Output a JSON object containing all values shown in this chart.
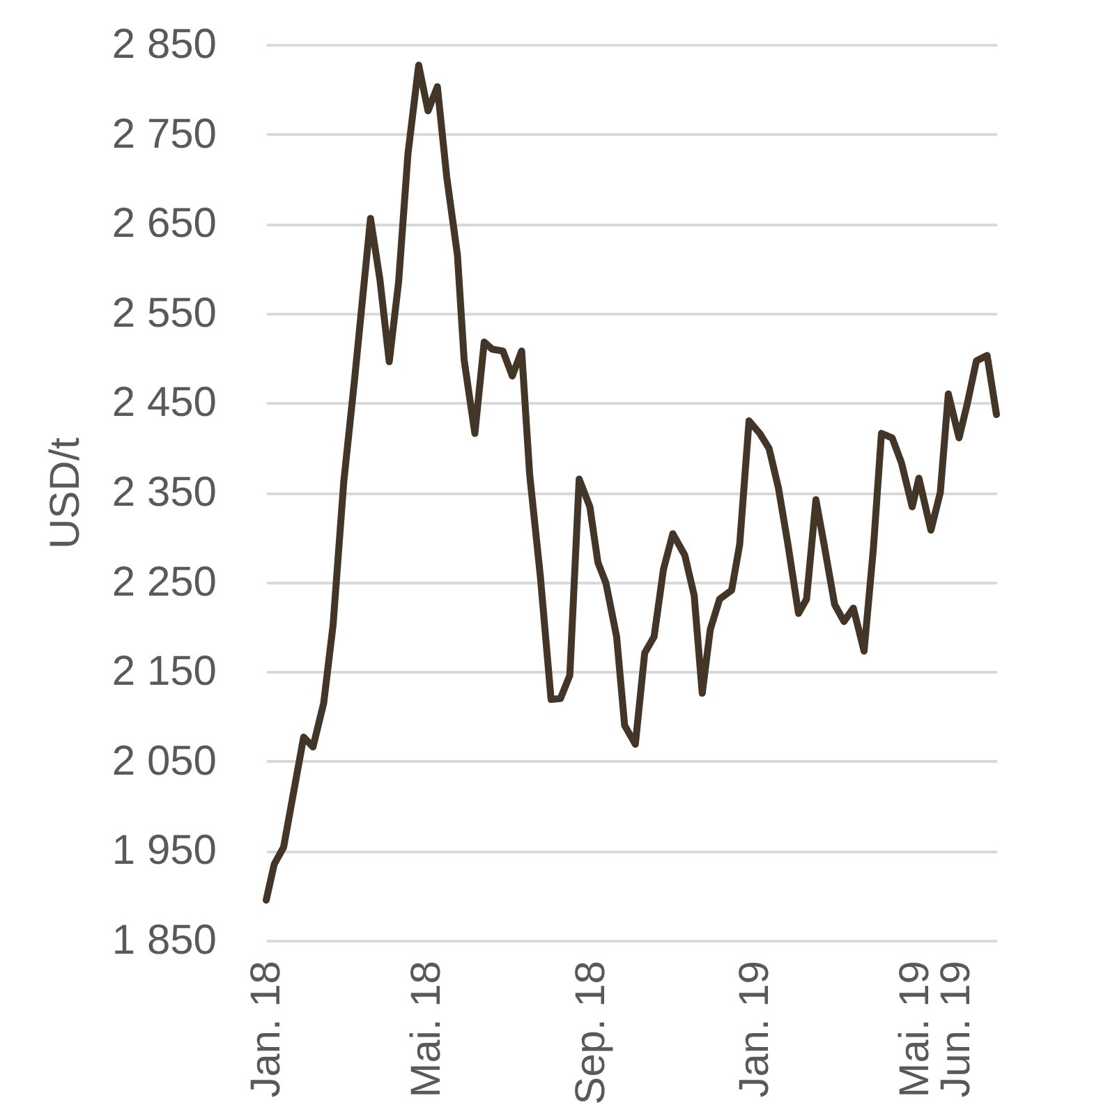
{
  "chart_data": {
    "type": "line",
    "ylabel": "USD/t",
    "xlim": [
      "2018-01-01",
      "2019-07-01"
    ],
    "xticks": [
      {
        "value": "2018-01-01",
        "label": "Jan. 18"
      },
      {
        "value": "2018-05-01",
        "label": "Mai. 18"
      },
      {
        "value": "2018-09-01",
        "label": "Sep. 18"
      },
      {
        "value": "2019-01-01",
        "label": "Jan. 19"
      },
      {
        "value": "2019-05-01",
        "label": "Mai. 19"
      },
      {
        "value": "2019-06-01",
        "label": "Jun. 19"
      }
    ],
    "ylim": [
      1850,
      2850
    ],
    "yticks": [
      {
        "value": 1850,
        "label": "1 850"
      },
      {
        "value": 1950,
        "label": "1 950"
      },
      {
        "value": 2050,
        "label": "2 050"
      },
      {
        "value": 2150,
        "label": "2 150"
      },
      {
        "value": 2250,
        "label": "2 250"
      },
      {
        "value": 2350,
        "label": "2 350"
      },
      {
        "value": 2450,
        "label": "2 450"
      },
      {
        "value": 2550,
        "label": "2 550"
      },
      {
        "value": 2650,
        "label": "2 650"
      },
      {
        "value": 2750,
        "label": "2 750"
      },
      {
        "value": 2850,
        "label": "2 850"
      }
    ],
    "grid": "y",
    "x": [
      "2018-01-01",
      "2018-01-07",
      "2018-01-14",
      "2018-01-29",
      "2018-02-05",
      "2018-02-13",
      "2018-02-20",
      "2018-02-28",
      "2018-03-08",
      "2018-03-20",
      "2018-03-27",
      "2018-04-03",
      "2018-04-10",
      "2018-04-17",
      "2018-04-25",
      "2018-05-02",
      "2018-05-09",
      "2018-05-16",
      "2018-05-24",
      "2018-05-29",
      "2018-06-06",
      "2018-06-13",
      "2018-06-19",
      "2018-06-27",
      "2018-07-04",
      "2018-07-11",
      "2018-07-17",
      "2018-07-25",
      "2018-08-02",
      "2018-08-09",
      "2018-08-16",
      "2018-08-23",
      "2018-08-31",
      "2018-09-06",
      "2018-09-12",
      "2018-09-20",
      "2018-09-26",
      "2018-10-04",
      "2018-10-11",
      "2018-10-18",
      "2018-10-25",
      "2018-11-01",
      "2018-11-10",
      "2018-11-17",
      "2018-11-23",
      "2018-11-29",
      "2018-12-06",
      "2018-12-15",
      "2018-12-21",
      "2018-12-28",
      "2019-01-05",
      "2019-01-12",
      "2019-01-19",
      "2019-01-26",
      "2019-02-03",
      "2019-02-09",
      "2019-02-16",
      "2019-02-22",
      "2019-03-02",
      "2019-03-09",
      "2019-03-16",
      "2019-03-24",
      "2019-03-31",
      "2019-04-06",
      "2019-04-14",
      "2019-04-21",
      "2019-04-29",
      "2019-05-04",
      "2019-05-13",
      "2019-05-20",
      "2019-05-26",
      "2019-06-03",
      "2019-06-09",
      "2019-06-16",
      "2019-06-24",
      "2019-07-01"
    ],
    "series": [
      {
        "color": "#433629",
        "values": [
          1895,
          1935,
          1954,
          2077,
          2066,
          2115,
          2202,
          2362,
          2475,
          2656,
          2588,
          2496,
          2585,
          2728,
          2827,
          2776,
          2803,
          2702,
          2615,
          2498,
          2416,
          2518,
          2510,
          2508,
          2480,
          2508,
          2370,
          2256,
          2119,
          2120,
          2146,
          2365,
          2334,
          2272,
          2249,
          2189,
          2090,
          2069,
          2171,
          2189,
          2264,
          2304,
          2280,
          2235,
          2126,
          2197,
          2231,
          2241,
          2292,
          2430,
          2416,
          2399,
          2355,
          2293,
          2215,
          2231,
          2342,
          2293,
          2225,
          2206,
          2221,
          2173,
          2288,
          2416,
          2411,
          2383,
          2334,
          2366,
          2308,
          2350,
          2460,
          2411,
          2448,
          2497,
          2503,
          2437
        ]
      }
    ]
  }
}
